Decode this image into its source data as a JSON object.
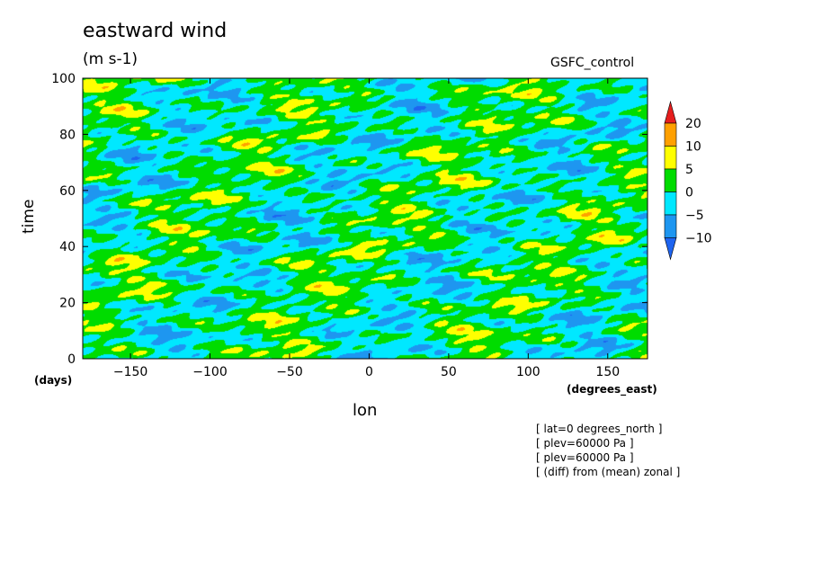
{
  "chart_data": {
    "type": "heatmap",
    "title": "eastward wind",
    "units": "(m s-1)",
    "run_label": "GSFC_control",
    "xlabel": "lon",
    "ylabel": "time",
    "x_unit": "(degrees_east)",
    "y_unit": "(days)",
    "xlim": [
      -180,
      175
    ],
    "ylim": [
      0,
      100
    ],
    "x_ticks": [
      -150,
      -100,
      -50,
      0,
      50,
      100,
      150
    ],
    "y_ticks": [
      0,
      20,
      40,
      60,
      80,
      100
    ],
    "colorbar": {
      "levels": [
        -10,
        -5,
        0,
        5,
        10,
        20
      ],
      "colors": [
        "#1e64f0",
        "#1e96f0",
        "#00e8ff",
        "#00dc00",
        "#ffff00",
        "#ffa000",
        "#e61e1e"
      ],
      "extend": "both"
    },
    "annotations": [
      "[ lat=0 degrees_north ]",
      "[ plev=60000 Pa ]",
      "[ plev=60000 Pa ]",
      "[ (diff) from (mean) zonal ]"
    ]
  }
}
